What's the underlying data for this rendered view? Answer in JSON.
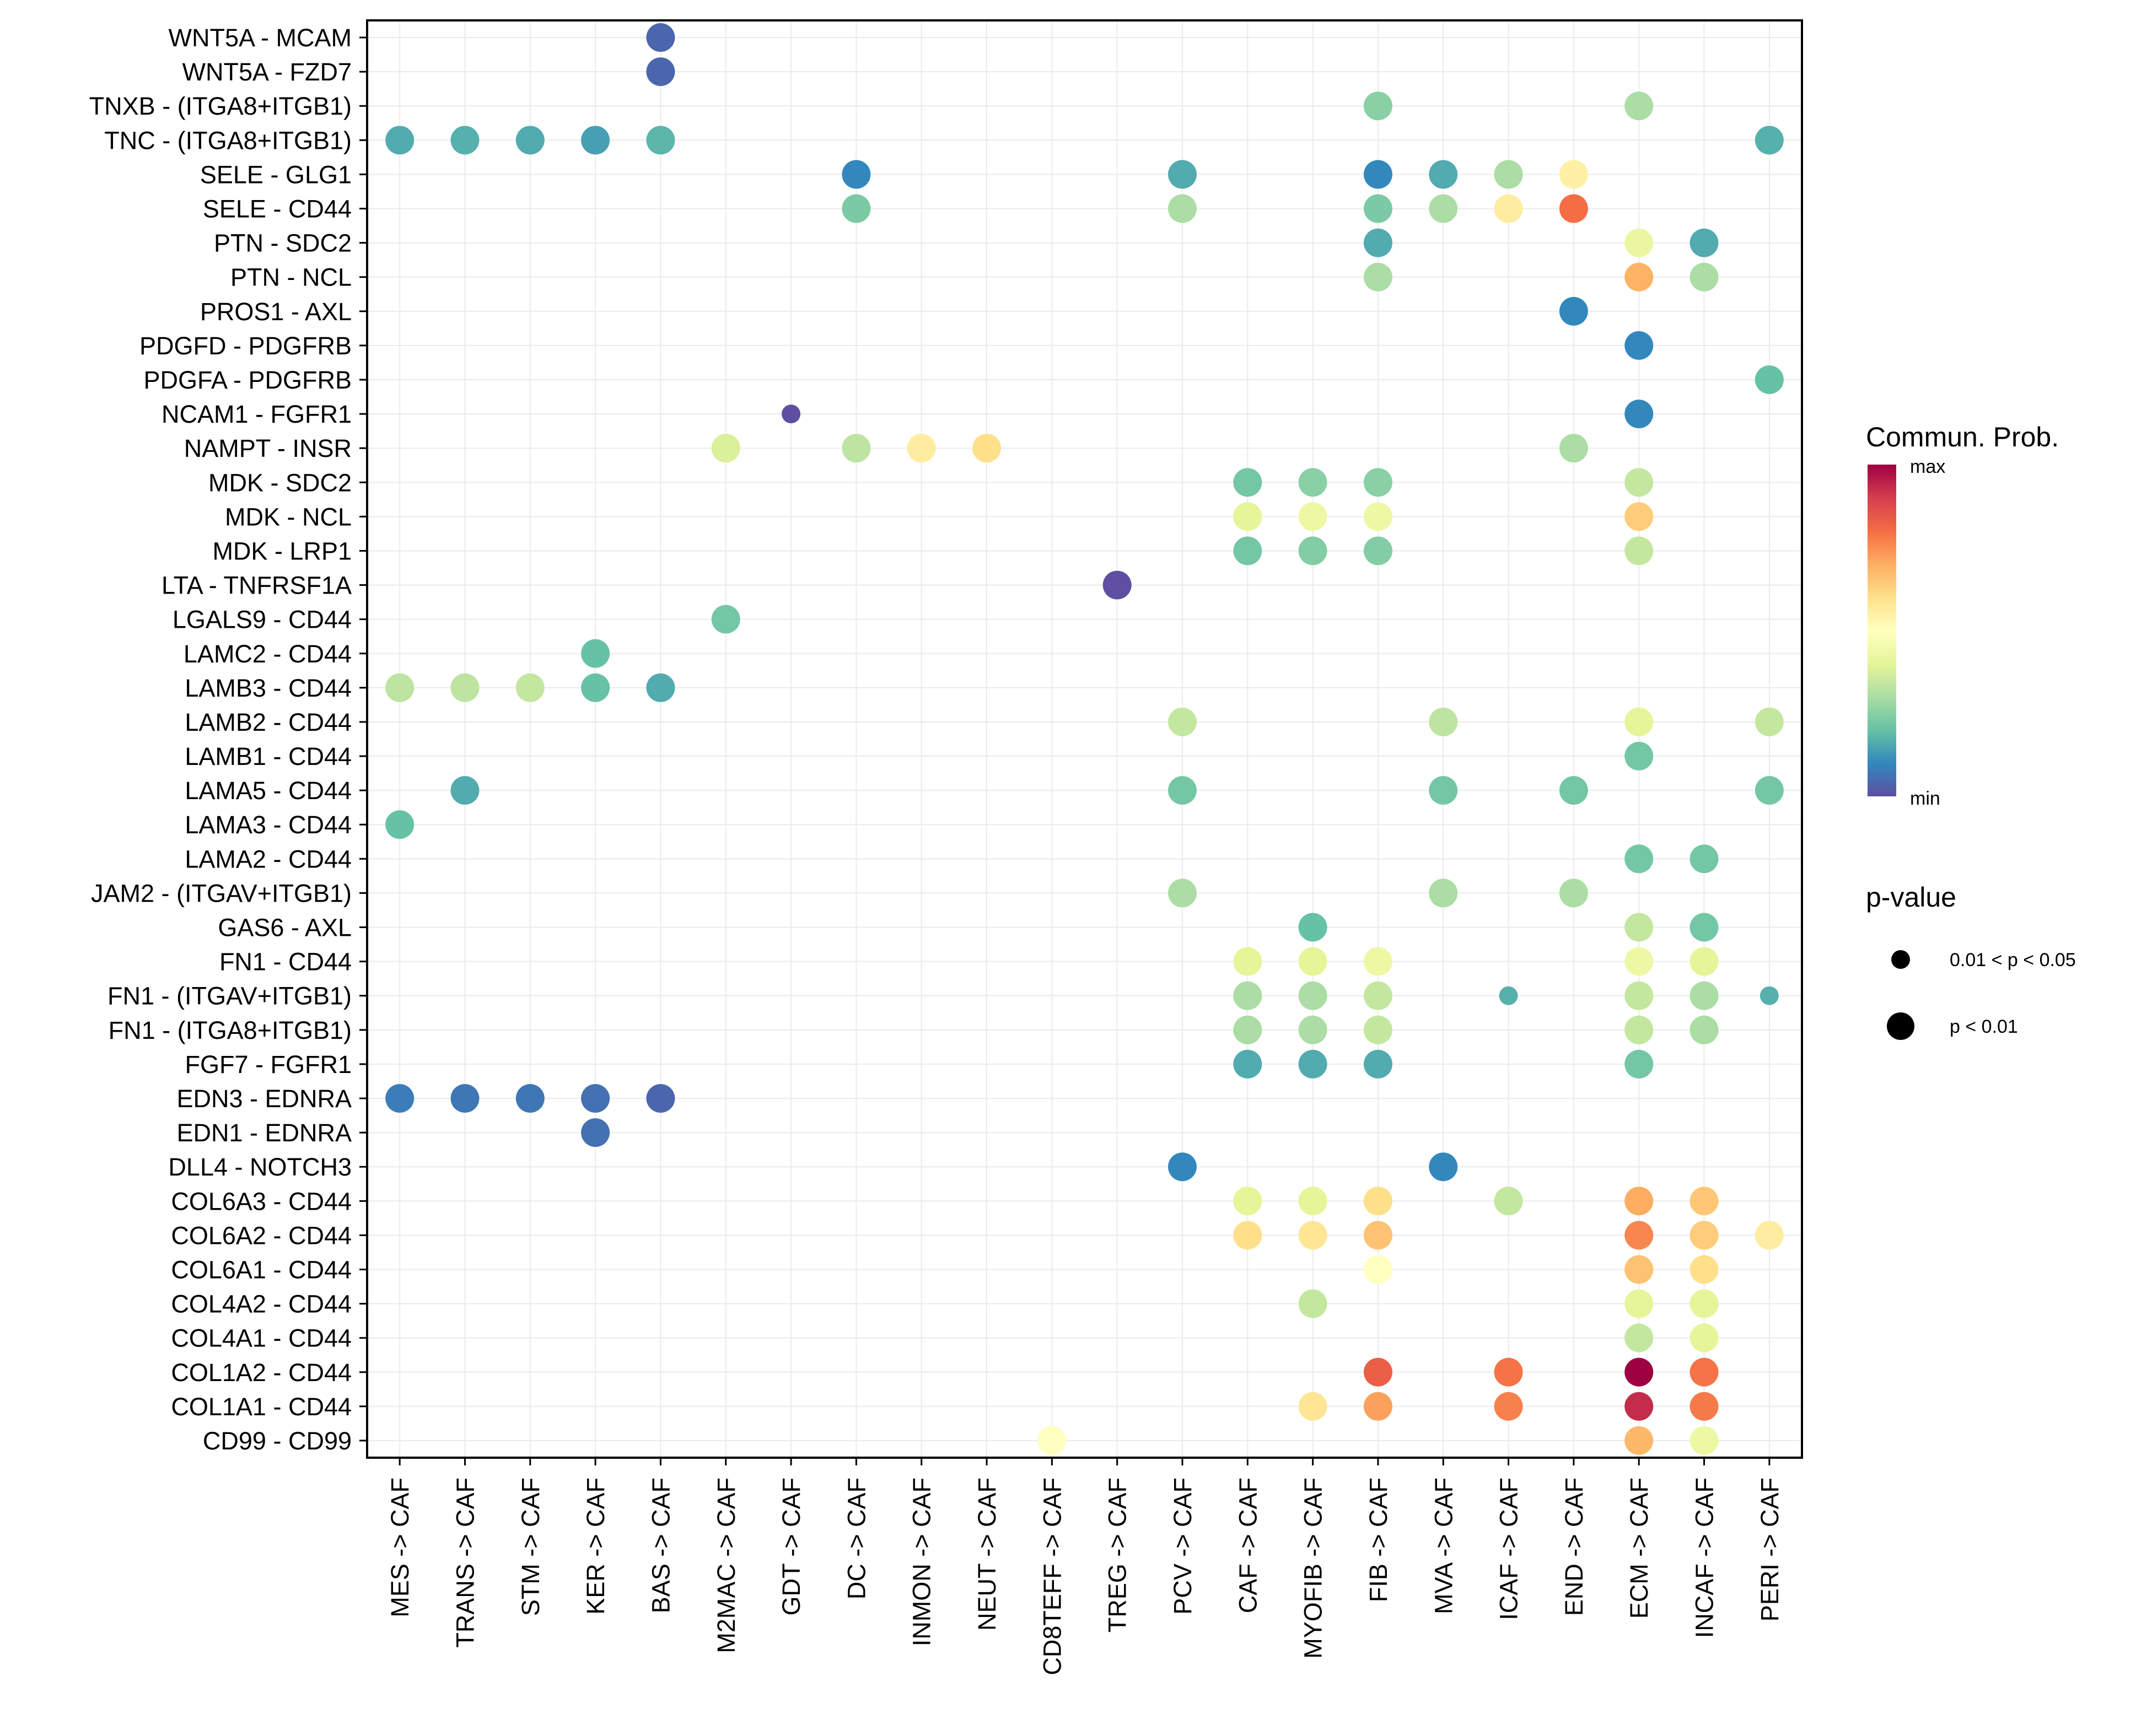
{
  "chart_data": {
    "type": "scatter",
    "subtype": "dot-matrix",
    "title": "",
    "xlabel": "",
    "ylabel": "",
    "grid": true,
    "legend_position": "right",
    "x_categories": [
      "MES -> CAF",
      "TRANS -> CAF",
      "STM -> CAF",
      "KER -> CAF",
      "BAS -> CAF",
      "M2MAC -> CAF",
      "GDT -> CAF",
      "DC -> CAF",
      "INMON -> CAF",
      "NEUT -> CAF",
      "CD8TEFF -> CAF",
      "TREG -> CAF",
      "PCV -> CAF",
      "CAF -> CAF",
      "MYOFIB -> CAF",
      "FIB -> CAF",
      "MVA -> CAF",
      "ICAF -> CAF",
      "END -> CAF",
      "ECM -> CAF",
      "INCAF -> CAF",
      "PERI -> CAF"
    ],
    "y_categories": [
      "WNT5A - MCAM",
      "WNT5A - FZD7",
      "TNXB - (ITGA8+ITGB1)",
      "TNC - (ITGA8+ITGB1)",
      "SELE - GLG1",
      "SELE - CD44",
      "PTN - SDC2",
      "PTN - NCL",
      "PROS1 - AXL",
      "PDGFD - PDGFRB",
      "PDGFA - PDGFRB",
      "NCAM1 - FGFR1",
      "NAMPT - INSR",
      "MDK - SDC2",
      "MDK - NCL",
      "MDK - LRP1",
      "LTA - TNFRSF1A",
      "LGALS9 - CD44",
      "LAMC2 - CD44",
      "LAMB3 - CD44",
      "LAMB2 - CD44",
      "LAMB1 - CD44",
      "LAMA5 - CD44",
      "LAMA3 - CD44",
      "LAMA2 - CD44",
      "JAM2 - (ITGAV+ITGB1)",
      "GAS6 - AXL",
      "FN1 - CD44",
      "FN1 - (ITGAV+ITGB1)",
      "FN1 - (ITGA8+ITGB1)",
      "FGF7 - FGFR1",
      "EDN3 - EDNRA",
      "EDN1 - EDNRA",
      "DLL4 - NOTCH3",
      "COL6A3 - CD44",
      "COL6A2 - CD44",
      "COL6A1 - CD44",
      "COL4A2 - CD44",
      "COL4A1 - CD44",
      "COL1A2 - CD44",
      "COL1A1 - CD44",
      "CD99 - CD99"
    ],
    "color_scale": {
      "title": "Commun. Prob.",
      "min_label": "min",
      "max_label": "max",
      "palette": [
        "#5E4FA2",
        "#3288BD",
        "#66C2A5",
        "#ABDDA4",
        "#E6F598",
        "#FFFFBF",
        "#FEE08B",
        "#FDAE61",
        "#F46D43",
        "#D53E4F",
        "#9E0142"
      ]
    },
    "size_legend": {
      "title": "p-value",
      "entries": [
        {
          "label": "0.01 < p < 0.05",
          "pclass": "mid"
        },
        {
          "label": "p < 0.01",
          "pclass": "low"
        }
      ]
    },
    "points": [
      {
        "x": "BAS -> CAF",
        "y": "WNT5A - MCAM",
        "prob": 0.04,
        "p": "low"
      },
      {
        "x": "BAS -> CAF",
        "y": "WNT5A - FZD7",
        "prob": 0.04,
        "p": "low"
      },
      {
        "x": "FIB -> CAF",
        "y": "TNXB - (ITGA8+ITGB1)",
        "prob": 0.25,
        "p": "low"
      },
      {
        "x": "ECM -> CAF",
        "y": "TNXB - (ITGA8+ITGB1)",
        "prob": 0.3,
        "p": "low"
      },
      {
        "x": "MES -> CAF",
        "y": "TNC - (ITGA8+ITGB1)",
        "prob": 0.16,
        "p": "low"
      },
      {
        "x": "TRANS -> CAF",
        "y": "TNC - (ITGA8+ITGB1)",
        "prob": 0.17,
        "p": "low"
      },
      {
        "x": "STM -> CAF",
        "y": "TNC - (ITGA8+ITGB1)",
        "prob": 0.16,
        "p": "low"
      },
      {
        "x": "KER -> CAF",
        "y": "TNC - (ITGA8+ITGB1)",
        "prob": 0.14,
        "p": "low"
      },
      {
        "x": "BAS -> CAF",
        "y": "TNC - (ITGA8+ITGB1)",
        "prob": 0.18,
        "p": "low"
      },
      {
        "x": "PERI -> CAF",
        "y": "TNC - (ITGA8+ITGB1)",
        "prob": 0.17,
        "p": "low"
      },
      {
        "x": "DC -> CAF",
        "y": "SELE - GLG1",
        "prob": 0.1,
        "p": "low"
      },
      {
        "x": "PCV -> CAF",
        "y": "SELE - GLG1",
        "prob": 0.16,
        "p": "low"
      },
      {
        "x": "FIB -> CAF",
        "y": "SELE - GLG1",
        "prob": 0.1,
        "p": "low"
      },
      {
        "x": "MVA -> CAF",
        "y": "SELE - GLG1",
        "prob": 0.16,
        "p": "low"
      },
      {
        "x": "ICAF -> CAF",
        "y": "SELE - GLG1",
        "prob": 0.3,
        "p": "low"
      },
      {
        "x": "END -> CAF",
        "y": "SELE - GLG1",
        "prob": 0.55,
        "p": "low"
      },
      {
        "x": "DC -> CAF",
        "y": "SELE - CD44",
        "prob": 0.23,
        "p": "low"
      },
      {
        "x": "PCV -> CAF",
        "y": "SELE - CD44",
        "prob": 0.3,
        "p": "low"
      },
      {
        "x": "FIB -> CAF",
        "y": "SELE - CD44",
        "prob": 0.23,
        "p": "low"
      },
      {
        "x": "MVA -> CAF",
        "y": "SELE - CD44",
        "prob": 0.3,
        "p": "low"
      },
      {
        "x": "ICAF -> CAF",
        "y": "SELE - CD44",
        "prob": 0.56,
        "p": "low"
      },
      {
        "x": "END -> CAF",
        "y": "SELE - CD44",
        "prob": 0.8,
        "p": "low"
      },
      {
        "x": "FIB -> CAF",
        "y": "PTN - SDC2",
        "prob": 0.16,
        "p": "low"
      },
      {
        "x": "ECM -> CAF",
        "y": "PTN - SDC2",
        "prob": 0.42,
        "p": "low"
      },
      {
        "x": "INCAF -> CAF",
        "y": "PTN - SDC2",
        "prob": 0.16,
        "p": "low"
      },
      {
        "x": "FIB -> CAF",
        "y": "PTN - NCL",
        "prob": 0.3,
        "p": "low"
      },
      {
        "x": "ECM -> CAF",
        "y": "PTN - NCL",
        "prob": 0.69,
        "p": "low"
      },
      {
        "x": "INCAF -> CAF",
        "y": "PTN - NCL",
        "prob": 0.3,
        "p": "low"
      },
      {
        "x": "END -> CAF",
        "y": "PROS1 - AXL",
        "prob": 0.1,
        "p": "low"
      },
      {
        "x": "ECM -> CAF",
        "y": "PDGFD - PDGFRB",
        "prob": 0.1,
        "p": "low"
      },
      {
        "x": "PERI -> CAF",
        "y": "PDGFA - PDGFRB",
        "prob": 0.2,
        "p": "low"
      },
      {
        "x": "GDT -> CAF",
        "y": "NCAM1 - FGFR1",
        "prob": 0.0,
        "p": "mid"
      },
      {
        "x": "ECM -> CAF",
        "y": "NCAM1 - FGFR1",
        "prob": 0.1,
        "p": "low"
      },
      {
        "x": "M2MAC -> CAF",
        "y": "NAMPT - INSR",
        "prob": 0.38,
        "p": "low"
      },
      {
        "x": "DC -> CAF",
        "y": "NAMPT - INSR",
        "prob": 0.33,
        "p": "low"
      },
      {
        "x": "INMON -> CAF",
        "y": "NAMPT - INSR",
        "prob": 0.56,
        "p": "low"
      },
      {
        "x": "NEUT -> CAF",
        "y": "NAMPT - INSR",
        "prob": 0.6,
        "p": "low"
      },
      {
        "x": "END -> CAF",
        "y": "NAMPT - INSR",
        "prob": 0.3,
        "p": "low"
      },
      {
        "x": "CAF -> CAF",
        "y": "MDK - SDC2",
        "prob": 0.22,
        "p": "low"
      },
      {
        "x": "MYOFIB -> CAF",
        "y": "MDK - SDC2",
        "prob": 0.25,
        "p": "low"
      },
      {
        "x": "FIB -> CAF",
        "y": "MDK - SDC2",
        "prob": 0.25,
        "p": "low"
      },
      {
        "x": "ECM -> CAF",
        "y": "MDK - SDC2",
        "prob": 0.34,
        "p": "low"
      },
      {
        "x": "CAF -> CAF",
        "y": "MDK - NCL",
        "prob": 0.4,
        "p": "low"
      },
      {
        "x": "MYOFIB -> CAF",
        "y": "MDK - NCL",
        "prob": 0.43,
        "p": "low"
      },
      {
        "x": "FIB -> CAF",
        "y": "MDK - NCL",
        "prob": 0.43,
        "p": "low"
      },
      {
        "x": "ECM -> CAF",
        "y": "MDK - NCL",
        "prob": 0.64,
        "p": "low"
      },
      {
        "x": "CAF -> CAF",
        "y": "MDK - LRP1",
        "prob": 0.22,
        "p": "low"
      },
      {
        "x": "MYOFIB -> CAF",
        "y": "MDK - LRP1",
        "prob": 0.24,
        "p": "low"
      },
      {
        "x": "FIB -> CAF",
        "y": "MDK - LRP1",
        "prob": 0.24,
        "p": "low"
      },
      {
        "x": "ECM -> CAF",
        "y": "MDK - LRP1",
        "prob": 0.34,
        "p": "low"
      },
      {
        "x": "TREG -> CAF",
        "y": "LTA - TNFRSF1A",
        "prob": 0.0,
        "p": "low"
      },
      {
        "x": "M2MAC -> CAF",
        "y": "LGALS9 - CD44",
        "prob": 0.22,
        "p": "low"
      },
      {
        "x": "KER -> CAF",
        "y": "LAMC2 - CD44",
        "prob": 0.2,
        "p": "low"
      },
      {
        "x": "MES -> CAF",
        "y": "LAMB3 - CD44",
        "prob": 0.33,
        "p": "low"
      },
      {
        "x": "TRANS -> CAF",
        "y": "LAMB3 - CD44",
        "prob": 0.33,
        "p": "low"
      },
      {
        "x": "STM -> CAF",
        "y": "LAMB3 - CD44",
        "prob": 0.34,
        "p": "low"
      },
      {
        "x": "KER -> CAF",
        "y": "LAMB3 - CD44",
        "prob": 0.2,
        "p": "low"
      },
      {
        "x": "BAS -> CAF",
        "y": "LAMB3 - CD44",
        "prob": 0.16,
        "p": "low"
      },
      {
        "x": "PCV -> CAF",
        "y": "LAMB2 - CD44",
        "prob": 0.34,
        "p": "low"
      },
      {
        "x": "MVA -> CAF",
        "y": "LAMB2 - CD44",
        "prob": 0.33,
        "p": "low"
      },
      {
        "x": "ECM -> CAF",
        "y": "LAMB2 - CD44",
        "prob": 0.4,
        "p": "low"
      },
      {
        "x": "PERI -> CAF",
        "y": "LAMB2 - CD44",
        "prob": 0.34,
        "p": "low"
      },
      {
        "x": "ECM -> CAF",
        "y": "LAMB1 - CD44",
        "prob": 0.22,
        "p": "low"
      },
      {
        "x": "TRANS -> CAF",
        "y": "LAMA5 - CD44",
        "prob": 0.16,
        "p": "low"
      },
      {
        "x": "PCV -> CAF",
        "y": "LAMA5 - CD44",
        "prob": 0.22,
        "p": "low"
      },
      {
        "x": "MVA -> CAF",
        "y": "LAMA5 - CD44",
        "prob": 0.22,
        "p": "low"
      },
      {
        "x": "END -> CAF",
        "y": "LAMA5 - CD44",
        "prob": 0.22,
        "p": "low"
      },
      {
        "x": "PERI -> CAF",
        "y": "LAMA5 - CD44",
        "prob": 0.22,
        "p": "low"
      },
      {
        "x": "MES -> CAF",
        "y": "LAMA3 - CD44",
        "prob": 0.2,
        "p": "low"
      },
      {
        "x": "ECM -> CAF",
        "y": "LAMA2 - CD44",
        "prob": 0.22,
        "p": "low"
      },
      {
        "x": "INCAF -> CAF",
        "y": "LAMA2 - CD44",
        "prob": 0.22,
        "p": "low"
      },
      {
        "x": "PCV -> CAF",
        "y": "JAM2 - (ITGAV+ITGB1)",
        "prob": 0.3,
        "p": "low"
      },
      {
        "x": "MVA -> CAF",
        "y": "JAM2 - (ITGAV+ITGB1)",
        "prob": 0.3,
        "p": "low"
      },
      {
        "x": "END -> CAF",
        "y": "JAM2 - (ITGAV+ITGB1)",
        "prob": 0.3,
        "p": "low"
      },
      {
        "x": "MYOFIB -> CAF",
        "y": "GAS6 - AXL",
        "prob": 0.2,
        "p": "low"
      },
      {
        "x": "ECM -> CAF",
        "y": "GAS6 - AXL",
        "prob": 0.34,
        "p": "low"
      },
      {
        "x": "INCAF -> CAF",
        "y": "GAS6 - AXL",
        "prob": 0.22,
        "p": "low"
      },
      {
        "x": "CAF -> CAF",
        "y": "FN1 - CD44",
        "prob": 0.4,
        "p": "low"
      },
      {
        "x": "MYOFIB -> CAF",
        "y": "FN1 - CD44",
        "prob": 0.4,
        "p": "low"
      },
      {
        "x": "FIB -> CAF",
        "y": "FN1 - CD44",
        "prob": 0.43,
        "p": "low"
      },
      {
        "x": "ECM -> CAF",
        "y": "FN1 - CD44",
        "prob": 0.43,
        "p": "low"
      },
      {
        "x": "INCAF -> CAF",
        "y": "FN1 - CD44",
        "prob": 0.4,
        "p": "low"
      },
      {
        "x": "CAF -> CAF",
        "y": "FN1 - (ITGAV+ITGB1)",
        "prob": 0.3,
        "p": "low"
      },
      {
        "x": "MYOFIB -> CAF",
        "y": "FN1 - (ITGAV+ITGB1)",
        "prob": 0.3,
        "p": "low"
      },
      {
        "x": "FIB -> CAF",
        "y": "FN1 - (ITGAV+ITGB1)",
        "prob": 0.34,
        "p": "low"
      },
      {
        "x": "ICAF -> CAF",
        "y": "FN1 - (ITGAV+ITGB1)",
        "prob": 0.17,
        "p": "mid"
      },
      {
        "x": "ECM -> CAF",
        "y": "FN1 - (ITGAV+ITGB1)",
        "prob": 0.34,
        "p": "low"
      },
      {
        "x": "INCAF -> CAF",
        "y": "FN1 - (ITGAV+ITGB1)",
        "prob": 0.3,
        "p": "low"
      },
      {
        "x": "PERI -> CAF",
        "y": "FN1 - (ITGAV+ITGB1)",
        "prob": 0.17,
        "p": "mid"
      },
      {
        "x": "CAF -> CAF",
        "y": "FN1 - (ITGA8+ITGB1)",
        "prob": 0.3,
        "p": "low"
      },
      {
        "x": "MYOFIB -> CAF",
        "y": "FN1 - (ITGA8+ITGB1)",
        "prob": 0.3,
        "p": "low"
      },
      {
        "x": "FIB -> CAF",
        "y": "FN1 - (ITGA8+ITGB1)",
        "prob": 0.34,
        "p": "low"
      },
      {
        "x": "ECM -> CAF",
        "y": "FN1 - (ITGA8+ITGB1)",
        "prob": 0.34,
        "p": "low"
      },
      {
        "x": "INCAF -> CAF",
        "y": "FN1 - (ITGA8+ITGB1)",
        "prob": 0.3,
        "p": "low"
      },
      {
        "x": "CAF -> CAF",
        "y": "FGF7 - FGFR1",
        "prob": 0.16,
        "p": "low"
      },
      {
        "x": "MYOFIB -> CAF",
        "y": "FGF7 - FGFR1",
        "prob": 0.16,
        "p": "low"
      },
      {
        "x": "FIB -> CAF",
        "y": "FGF7 - FGFR1",
        "prob": 0.16,
        "p": "low"
      },
      {
        "x": "ECM -> CAF",
        "y": "FGF7 - FGFR1",
        "prob": 0.22,
        "p": "low"
      },
      {
        "x": "MES -> CAF",
        "y": "EDN3 - EDNRA",
        "prob": 0.08,
        "p": "low"
      },
      {
        "x": "TRANS -> CAF",
        "y": "EDN3 - EDNRA",
        "prob": 0.07,
        "p": "low"
      },
      {
        "x": "STM -> CAF",
        "y": "EDN3 - EDNRA",
        "prob": 0.07,
        "p": "low"
      },
      {
        "x": "KER -> CAF",
        "y": "EDN3 - EDNRA",
        "prob": 0.06,
        "p": "low"
      },
      {
        "x": "BAS -> CAF",
        "y": "EDN3 - EDNRA",
        "prob": 0.04,
        "p": "low"
      },
      {
        "x": "KER -> CAF",
        "y": "EDN1 - EDNRA",
        "prob": 0.06,
        "p": "low"
      },
      {
        "x": "PCV -> CAF",
        "y": "DLL4 - NOTCH3",
        "prob": 0.1,
        "p": "low"
      },
      {
        "x": "MVA -> CAF",
        "y": "DLL4 - NOTCH3",
        "prob": 0.1,
        "p": "low"
      },
      {
        "x": "CAF -> CAF",
        "y": "COL6A3 - CD44",
        "prob": 0.4,
        "p": "low"
      },
      {
        "x": "MYOFIB -> CAF",
        "y": "COL6A3 - CD44",
        "prob": 0.4,
        "p": "low"
      },
      {
        "x": "FIB -> CAF",
        "y": "COL6A3 - CD44",
        "prob": 0.6,
        "p": "low"
      },
      {
        "x": "ICAF -> CAF",
        "y": "COL6A3 - CD44",
        "prob": 0.34,
        "p": "low"
      },
      {
        "x": "ECM -> CAF",
        "y": "COL6A3 - CD44",
        "prob": 0.7,
        "p": "low"
      },
      {
        "x": "INCAF -> CAF",
        "y": "COL6A3 - CD44",
        "prob": 0.65,
        "p": "low"
      },
      {
        "x": "CAF -> CAF",
        "y": "COL6A2 - CD44",
        "prob": 0.6,
        "p": "low"
      },
      {
        "x": "MYOFIB -> CAF",
        "y": "COL6A2 - CD44",
        "prob": 0.58,
        "p": "low"
      },
      {
        "x": "FIB -> CAF",
        "y": "COL6A2 - CD44",
        "prob": 0.66,
        "p": "low"
      },
      {
        "x": "ECM -> CAF",
        "y": "COL6A2 - CD44",
        "prob": 0.76,
        "p": "low"
      },
      {
        "x": "INCAF -> CAF",
        "y": "COL6A2 - CD44",
        "prob": 0.64,
        "p": "low"
      },
      {
        "x": "PERI -> CAF",
        "y": "COL6A2 - CD44",
        "prob": 0.56,
        "p": "low"
      },
      {
        "x": "FIB -> CAF",
        "y": "COL6A1 - CD44",
        "prob": 0.5,
        "p": "low"
      },
      {
        "x": "ECM -> CAF",
        "y": "COL6A1 - CD44",
        "prob": 0.66,
        "p": "low"
      },
      {
        "x": "INCAF -> CAF",
        "y": "COL6A1 - CD44",
        "prob": 0.6,
        "p": "low"
      },
      {
        "x": "MYOFIB -> CAF",
        "y": "COL4A2 - CD44",
        "prob": 0.34,
        "p": "low"
      },
      {
        "x": "ECM -> CAF",
        "y": "COL4A2 - CD44",
        "prob": 0.4,
        "p": "low"
      },
      {
        "x": "INCAF -> CAF",
        "y": "COL4A2 - CD44",
        "prob": 0.4,
        "p": "low"
      },
      {
        "x": "ECM -> CAF",
        "y": "COL4A1 - CD44",
        "prob": 0.34,
        "p": "low"
      },
      {
        "x": "INCAF -> CAF",
        "y": "COL4A1 - CD44",
        "prob": 0.4,
        "p": "low"
      },
      {
        "x": "FIB -> CAF",
        "y": "COL1A2 - CD44",
        "prob": 0.83,
        "p": "low"
      },
      {
        "x": "ICAF -> CAF",
        "y": "COL1A2 - CD44",
        "prob": 0.79,
        "p": "low"
      },
      {
        "x": "ECM -> CAF",
        "y": "COL1A2 - CD44",
        "prob": 1.0,
        "p": "low"
      },
      {
        "x": "INCAF -> CAF",
        "y": "COL1A2 - CD44",
        "prob": 0.79,
        "p": "low"
      },
      {
        "x": "MYOFIB -> CAF",
        "y": "COL1A1 - CD44",
        "prob": 0.58,
        "p": "low"
      },
      {
        "x": "FIB -> CAF",
        "y": "COL1A1 - CD44",
        "prob": 0.72,
        "p": "low"
      },
      {
        "x": "ICAF -> CAF",
        "y": "COL1A1 - CD44",
        "prob": 0.77,
        "p": "low"
      },
      {
        "x": "ECM -> CAF",
        "y": "COL1A1 - CD44",
        "prob": 0.93,
        "p": "low"
      },
      {
        "x": "INCAF -> CAF",
        "y": "COL1A1 - CD44",
        "prob": 0.78,
        "p": "low"
      },
      {
        "x": "CD8TEFF -> CAF",
        "y": "CD99 - CD99",
        "prob": 0.5,
        "p": "low"
      },
      {
        "x": "ECM -> CAF",
        "y": "CD99 - CD99",
        "prob": 0.68,
        "p": "low"
      },
      {
        "x": "INCAF -> CAF",
        "y": "CD99 - CD99",
        "prob": 0.43,
        "p": "low"
      }
    ]
  }
}
